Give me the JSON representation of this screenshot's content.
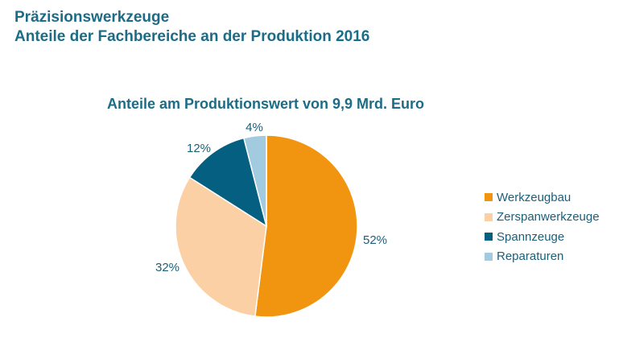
{
  "header": {
    "title": "Präzisionswerkzeuge",
    "subtitle": "Anteile der Fachbereiche an der Produktion 2016"
  },
  "chart_data": {
    "type": "pie",
    "title": "Anteile am Produktionswert von 9,9 Mrd. Euro",
    "categories": [
      "Werkzeugbau",
      "Zerspanwerkzeuge",
      "Spannzeuge",
      "Reparaturen"
    ],
    "values": [
      52,
      32,
      12,
      4
    ],
    "value_labels": [
      "52%",
      "32%",
      "12%",
      "4%"
    ],
    "colors": [
      "#f19410",
      "#fad0a4",
      "#045f80",
      "#a2cbe0"
    ],
    "start": "12 o'clock, clockwise",
    "legend": "right"
  }
}
